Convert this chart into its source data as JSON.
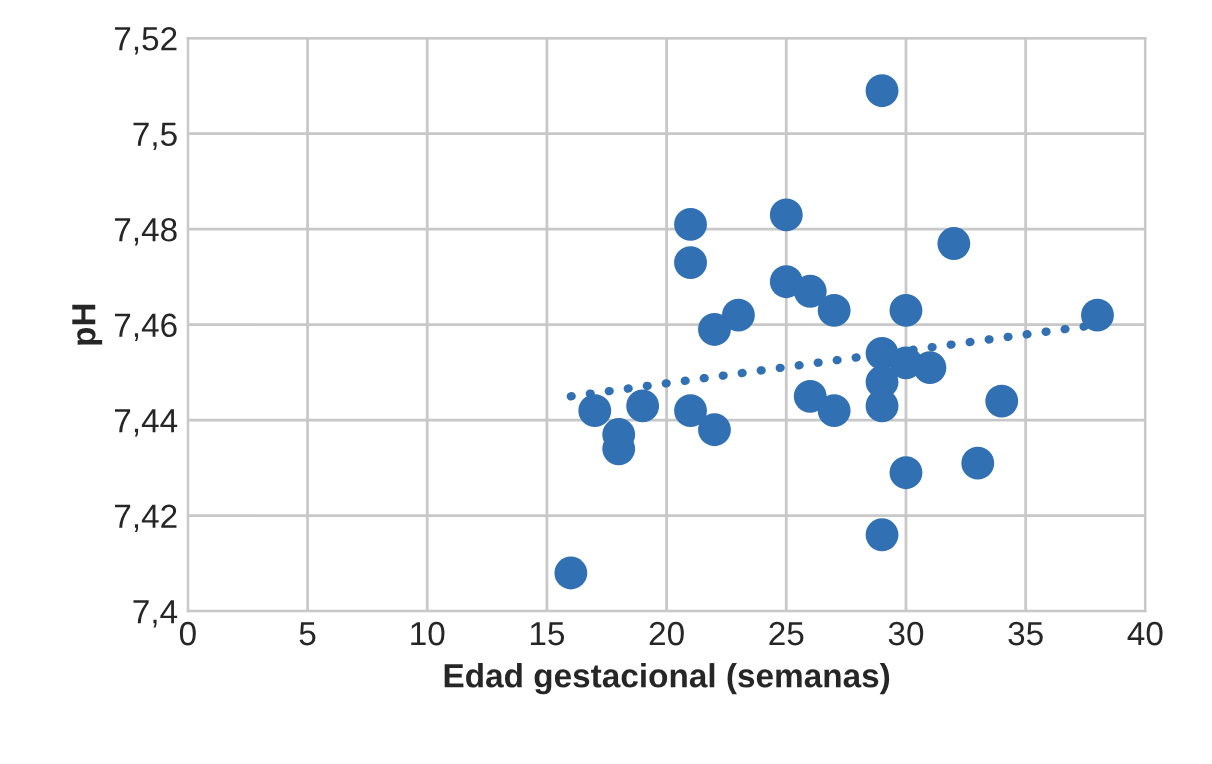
{
  "chart_data": {
    "type": "scatter",
    "xlabel": "Edad gestacional (semanas)",
    "ylabel": "pH",
    "xlim": [
      0,
      40
    ],
    "xticks": [
      0,
      5,
      10,
      15,
      20,
      25,
      30,
      35,
      40
    ],
    "ylim": [
      7.4,
      7.52
    ],
    "yticks": [
      {
        "value": 7.4,
        "label": "7,4"
      },
      {
        "value": 7.42,
        "label": "7,42"
      },
      {
        "value": 7.44,
        "label": "7,44"
      },
      {
        "value": 7.46,
        "label": "7,46"
      },
      {
        "value": 7.48,
        "label": "7,48"
      },
      {
        "value": 7.5,
        "label": "7,5"
      },
      {
        "value": 7.52,
        "label": "7,52"
      }
    ],
    "grid": true,
    "marker": "circle",
    "series": [
      {
        "color": "#3070b3",
        "x": [
          16,
          17,
          18,
          18,
          19,
          21,
          21,
          21,
          22,
          22,
          23,
          25,
          25,
          26,
          26,
          27,
          27,
          29,
          29,
          29,
          29,
          29,
          30,
          30,
          30,
          31,
          32,
          33,
          34,
          38
        ],
        "values": [
          7.408,
          7.442,
          7.437,
          7.434,
          7.443,
          7.481,
          7.473,
          7.442,
          7.459,
          7.438,
          7.462,
          7.483,
          7.469,
          7.467,
          7.445,
          7.463,
          7.442,
          7.509,
          7.454,
          7.448,
          7.443,
          7.416,
          7.463,
          7.452,
          7.429,
          7.451,
          7.477,
          7.431,
          7.444,
          7.462
        ]
      },
      {
        "type": "line",
        "color": "#3070b3",
        "line_style": "dotted",
        "marker": "none",
        "x": [
          16,
          38
        ],
        "values": [
          7.445,
          7.46
        ]
      }
    ]
  }
}
